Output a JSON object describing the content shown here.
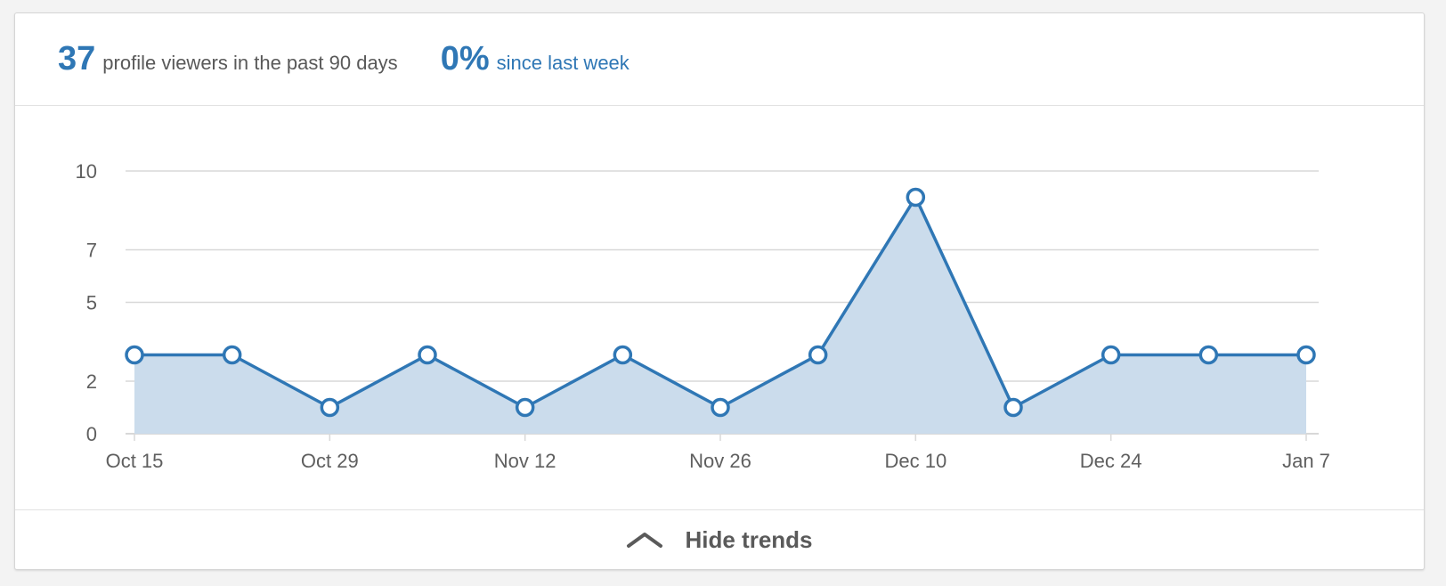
{
  "summary": {
    "viewers_count": "37",
    "viewers_text": "profile viewers in the past 90 days",
    "change_value": "0%",
    "change_text": "since last week"
  },
  "toggle": {
    "label": "Hide trends",
    "icon": "chevron-up-icon"
  },
  "colors": {
    "accent": "#2f77b5",
    "area_fill": "#cbdcec",
    "grid": "#d8d8d8",
    "text_gray": "#595959"
  },
  "chart_data": {
    "type": "area",
    "title": "",
    "xlabel": "",
    "ylabel": "",
    "x_ticks": [
      "Oct 15",
      "Oct 29",
      "Nov 12",
      "Nov 26",
      "Dec 10",
      "Dec 24",
      "Jan 7"
    ],
    "y_ticks": [
      "0",
      "2",
      "5",
      "7",
      "10"
    ],
    "ylim": [
      0,
      10
    ],
    "grid": true,
    "x": [
      "Oct 15",
      "Oct 22",
      "Oct 29",
      "Nov 5",
      "Nov 12",
      "Nov 19",
      "Nov 26",
      "Dec 3",
      "Dec 10",
      "Dec 17",
      "Dec 24",
      "Dec 31",
      "Jan 7"
    ],
    "series": [
      {
        "values": [
          3,
          3,
          1,
          3,
          1,
          3,
          1,
          3,
          9,
          1,
          3,
          3,
          3
        ]
      }
    ]
  }
}
